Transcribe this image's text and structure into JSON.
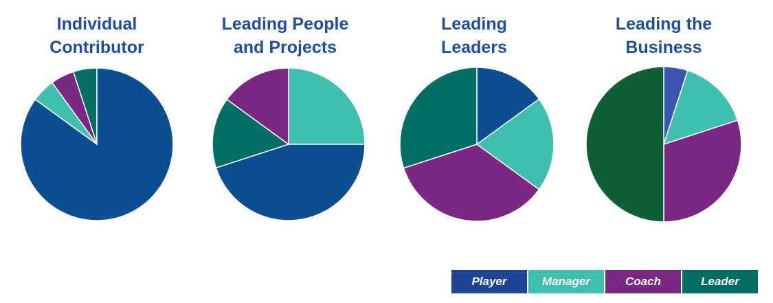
{
  "chart_data": {
    "type": "pie",
    "series_names": [
      "Player",
      "Manager",
      "Coach",
      "Leader"
    ],
    "colors": {
      "Player": "#0d4d91",
      "Manager": "#3fbfae",
      "Coach": "#7a2884",
      "Leader": "#036e64"
    },
    "charts": [
      {
        "title_lines": [
          "Individual",
          "Contributor"
        ],
        "values": [
          85,
          5,
          5,
          5
        ],
        "start_angle": 0,
        "direction": "counterclockwise",
        "order": [
          "Leader",
          "Coach",
          "Manager",
          "Player"
        ]
      },
      {
        "title_lines": [
          "Leading People",
          "and Projects"
        ],
        "values": [
          45,
          25,
          15,
          15
        ],
        "start_angle": 0,
        "direction": "clockwise",
        "order": [
          "Manager",
          "Player",
          "Leader",
          "Coach"
        ]
      },
      {
        "title_lines": [
          "Leading",
          "Leaders"
        ],
        "values": [
          15,
          20,
          35,
          30
        ],
        "start_angle": 0,
        "direction": "clockwise",
        "order": [
          "Player",
          "Manager",
          "Coach",
          "Leader"
        ]
      },
      {
        "title_lines": [
          "Leading the",
          "Business"
        ],
        "values": [
          5,
          15,
          30,
          50
        ],
        "start_angle": 0,
        "direction": "clockwise",
        "order": [
          "Player",
          "Manager",
          "Coach",
          "Leader"
        ],
        "slice_colors": {
          "Player": "#3a55ad",
          "Leader": "#115f38"
        }
      }
    ]
  },
  "legend": {
    "items": [
      {
        "label": "Player",
        "color": "#1f4596"
      },
      {
        "label": "Manager",
        "color": "#3fbfae"
      },
      {
        "label": "Coach",
        "color": "#7a2884"
      },
      {
        "label": "Leader",
        "color": "#036e64"
      }
    ]
  }
}
